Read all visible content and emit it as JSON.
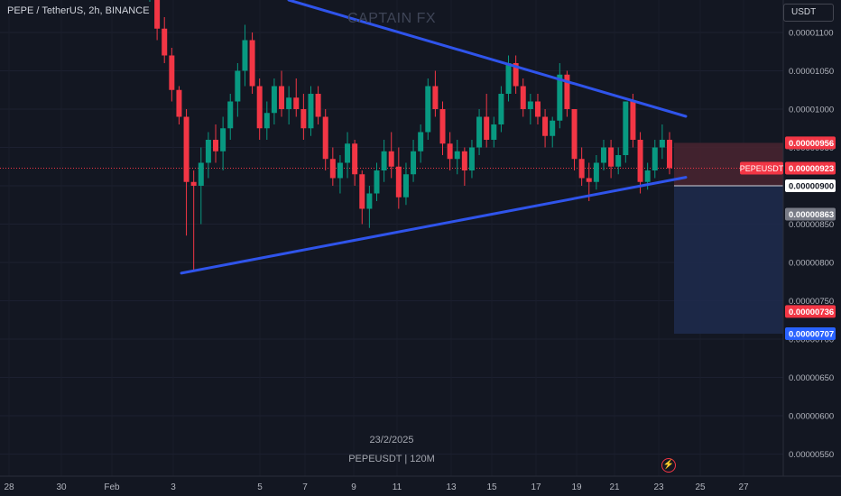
{
  "header": {
    "title": "PEPE / TetherUS, 2h, BINANCE"
  },
  "currency_selector": {
    "label": "USDT"
  },
  "watermark": "CAPTAIN FX",
  "footer": {
    "date": "23/2/2025",
    "symbol_volume": "PEPEUSDT  |  120M"
  },
  "icons": {
    "alert": "lightning-bolt-icon"
  },
  "colors": {
    "background": "#131722",
    "bull": "#089981",
    "bear": "#f23645",
    "trendline": "#2f54eb",
    "target_zone": "#1e2c4d",
    "stop_zone": "#4a2530"
  },
  "chart_data": {
    "type": "candlestick",
    "symbol": "PEPEUSDT",
    "ylim": [
      5.3e-06,
      1.13e-05
    ],
    "x_tick_labels": [
      "28",
      "30",
      "Feb",
      "3",
      "5",
      "7",
      "9",
      "11",
      "13",
      "15",
      "17",
      "19",
      "21",
      "23",
      "25",
      "27"
    ],
    "y_tick_labels": [
      "0.00001100",
      "0.00001050",
      "0.00001000",
      "0.00000950",
      "0.00000900",
      "0.00000850",
      "0.00000800",
      "0.00000750",
      "0.00000700",
      "0.00000650",
      "0.00000600",
      "0.00000550"
    ],
    "y_tick_values": [
      1.1e-05,
      1.05e-05,
      1e-05,
      9.5e-06,
      9e-06,
      8.5e-06,
      8e-06,
      7.5e-06,
      7e-06,
      6.5e-06,
      6e-06,
      5.5e-06
    ],
    "price_labels": [
      {
        "text": "0.00000956",
        "value": 9.56e-06,
        "style": "red"
      },
      {
        "text": "PEPEUSDT",
        "value": 9.23e-06,
        "style": "red-tag"
      },
      {
        "text": "0.00000923",
        "value": 9.23e-06,
        "style": "red"
      },
      {
        "text": "0.00000900",
        "value": 9e-06,
        "style": "white"
      },
      {
        "text": "0.00000863",
        "value": 8.63e-06,
        "style": "gray"
      },
      {
        "text": "0.00000736",
        "value": 7.36e-06,
        "style": "red"
      },
      {
        "text": "0.00000707",
        "value": 7.07e-06,
        "style": "blue"
      }
    ],
    "last_price": 9.23e-06,
    "position": {
      "entry": 9e-06,
      "stop": 9.56e-06,
      "target": 7.07e-06,
      "direction": "short"
    },
    "upper_trendline": [
      [
        1.16e-05,
        1.089e-05
      ],
      [
        1.0,
        9.93e-06
      ]
    ],
    "lower_trendline": [
      [
        0.0,
        7.86e-06
      ],
      [
        1.0,
        9.11e-06
      ]
    ],
    "candles": [
      [
        1.165e-05,
        1.2e-05,
        1.14e-05,
        1.18e-05
      ],
      [
        1.18e-05,
        1.19e-05,
        1.09e-05,
        1.105e-05
      ],
      [
        1.105e-05,
        1.12e-05,
        1.06e-05,
        1.07e-05
      ],
      [
        1.07e-05,
        1.08e-05,
        1.01e-05,
        1.025e-05
      ],
      [
        1.025e-05,
        1.03e-05,
        9.8e-06,
        9.9e-06
      ],
      [
        9.9e-06,
        1e-05,
        8.35e-06,
        9.05e-06
      ],
      [
        9.05e-06,
        9.2e-06,
        7.9e-06,
        9e-06
      ],
      [
        9e-06,
        9.5e-06,
        8.5e-06,
        9.3e-06
      ],
      [
        9.3e-06,
        9.7e-06,
        9.1e-06,
        9.6e-06
      ],
      [
        9.6e-06,
        9.8e-06,
        9.3e-06,
        9.45e-06
      ],
      [
        9.45e-06,
        9.9e-06,
        9.2e-06,
        9.75e-06
      ],
      [
        9.75e-06,
        1.02e-05,
        9.6e-06,
        1.01e-05
      ],
      [
        1.01e-05,
        1.06e-05,
        9.9e-06,
        1.05e-05
      ],
      [
        1.05e-05,
        1.11e-05,
        1.03e-05,
        1.09e-05
      ],
      [
        1.09e-05,
        1.1e-05,
        1.02e-05,
        1.03e-05
      ],
      [
        1.03e-05,
        1.04e-05,
        9.6e-06,
        9.75e-06
      ],
      [
        9.75e-06,
        1.01e-05,
        9.6e-06,
        9.95e-06
      ],
      [
        9.95e-06,
        1.04e-05,
        9.8e-06,
        1.03e-05
      ],
      [
        1.03e-05,
        1.05e-05,
        9.9e-06,
        1e-05
      ],
      [
        1e-05,
        1.03e-05,
        9.8e-06,
        1.015e-05
      ],
      [
        1.015e-05,
        1.04e-05,
        9.9e-06,
        1e-05
      ],
      [
        1e-05,
        1.02e-05,
        9.6e-06,
        9.75e-06
      ],
      [
        9.75e-06,
        1.03e-05,
        9.65e-06,
        1.02e-05
      ],
      [
        1.02e-05,
        1.03e-05,
        9.8e-06,
        9.9e-06
      ],
      [
        9.9e-06,
        1e-05,
        9.2e-06,
        9.35e-06
      ],
      [
        9.35e-06,
        9.5e-06,
        9e-06,
        9.1e-06
      ],
      [
        9.1e-06,
        9.4e-06,
        8.9e-06,
        9.3e-06
      ],
      [
        9.3e-06,
        9.7e-06,
        9.1e-06,
        9.55e-06
      ],
      [
        9.55e-06,
        9.6e-06,
        9e-06,
        9.15e-06
      ],
      [
        9.15e-06,
        9.2e-06,
        8.5e-06,
        8.7e-06
      ],
      [
        8.7e-06,
        9e-06,
        8.45e-06,
        8.9e-06
      ],
      [
        8.9e-06,
        9.3e-06,
        8.8e-06,
        9.2e-06
      ],
      [
        9.2e-06,
        9.6e-06,
        9.05e-06,
        9.45e-06
      ],
      [
        9.45e-06,
        9.7e-06,
        9.1e-06,
        9.25e-06
      ],
      [
        9.25e-06,
        9.5e-06,
        8.7e-06,
        8.85e-06
      ],
      [
        8.85e-06,
        9.3e-06,
        8.75e-06,
        9.15e-06
      ],
      [
        9.15e-06,
        9.6e-06,
        9.05e-06,
        9.45e-06
      ],
      [
        9.45e-06,
        9.8e-06,
        9.3e-06,
        9.7e-06
      ],
      [
        9.7e-06,
        1.04e-05,
        9.6e-06,
        1.03e-05
      ],
      [
        1.03e-05,
        1.05e-05,
        9.9e-06,
        1e-05
      ],
      [
        1e-05,
        1.01e-05,
        9.4e-06,
        9.55e-06
      ],
      [
        9.55e-06,
        9.7e-06,
        9.2e-06,
        9.35e-06
      ],
      [
        9.35e-06,
        9.6e-06,
        9.15e-06,
        9.45e-06
      ],
      [
        9.45e-06,
        9.5e-06,
        9e-06,
        9.2e-06
      ],
      [
        9.2e-06,
        9.6e-06,
        9.1e-06,
        9.5e-06
      ],
      [
        9.5e-06,
        1e-05,
        9.4e-06,
        9.9e-06
      ],
      [
        9.9e-06,
        1.02e-05,
        9.5e-06,
        9.6e-06
      ],
      [
        9.6e-06,
        9.9e-06,
        9.5e-06,
        9.8e-06
      ],
      [
        9.8e-06,
        1.03e-05,
        9.7e-06,
        1.02e-05
      ],
      [
        1.02e-05,
        1.07e-05,
        1.01e-05,
        1.06e-05
      ],
      [
        1.06e-05,
        1.07e-05,
        1.02e-05,
        1.03e-05
      ],
      [
        1.03e-05,
        1.04e-05,
        9.9e-06,
        1e-05
      ],
      [
        1e-05,
        1.02e-05,
        9.8e-06,
        1.01e-05
      ],
      [
        1.01e-05,
        1.02e-05,
        9.8e-06,
        9.9e-06
      ],
      [
        9.9e-06,
        1e-05,
        9.5e-06,
        9.65e-06
      ],
      [
        9.65e-06,
        9.9e-06,
        9.5e-06,
        9.85e-06
      ],
      [
        9.85e-06,
        1.06e-05,
        9.75e-06,
        1.045e-05
      ],
      [
        1.045e-05,
        1.05e-05,
        9.9e-06,
        1e-05
      ],
      [
        1e-05,
        1e-05,
        9.2e-06,
        9.35e-06
      ],
      [
        9.35e-06,
        9.5e-06,
        9e-06,
        9.1e-06
      ],
      [
        9.1e-06,
        9.3e-06,
        8.8e-06,
        9.05e-06
      ],
      [
        9.05e-06,
        9.4e-06,
        8.95e-06,
        9.3e-06
      ],
      [
        9.3e-06,
        9.6e-06,
        9.2e-06,
        9.5e-06
      ],
      [
        9.5e-06,
        9.6e-06,
        9.1e-06,
        9.25e-06
      ],
      [
        9.25e-06,
        9.5e-06,
        9.15e-06,
        9.4e-06
      ],
      [
        9.4e-06,
        1.01e-05,
        9.3e-06,
        1.01e-05
      ],
      [
        1.01e-05,
        1.02e-05,
        9.5e-06,
        9.6e-06
      ],
      [
        9.6e-06,
        9.7e-06,
        8.9e-06,
        9.05e-06
      ],
      [
        9.05e-06,
        9.3e-06,
        8.95e-06,
        9.2e-06
      ],
      [
        9.2e-06,
        9.6e-06,
        9.1e-06,
        9.5e-06
      ],
      [
        9.5e-06,
        9.8e-06,
        9.35e-06,
        9.6e-06
      ],
      [
        9.6e-06,
        9.7e-06,
        9.15e-06,
        9.23e-06
      ]
    ]
  }
}
